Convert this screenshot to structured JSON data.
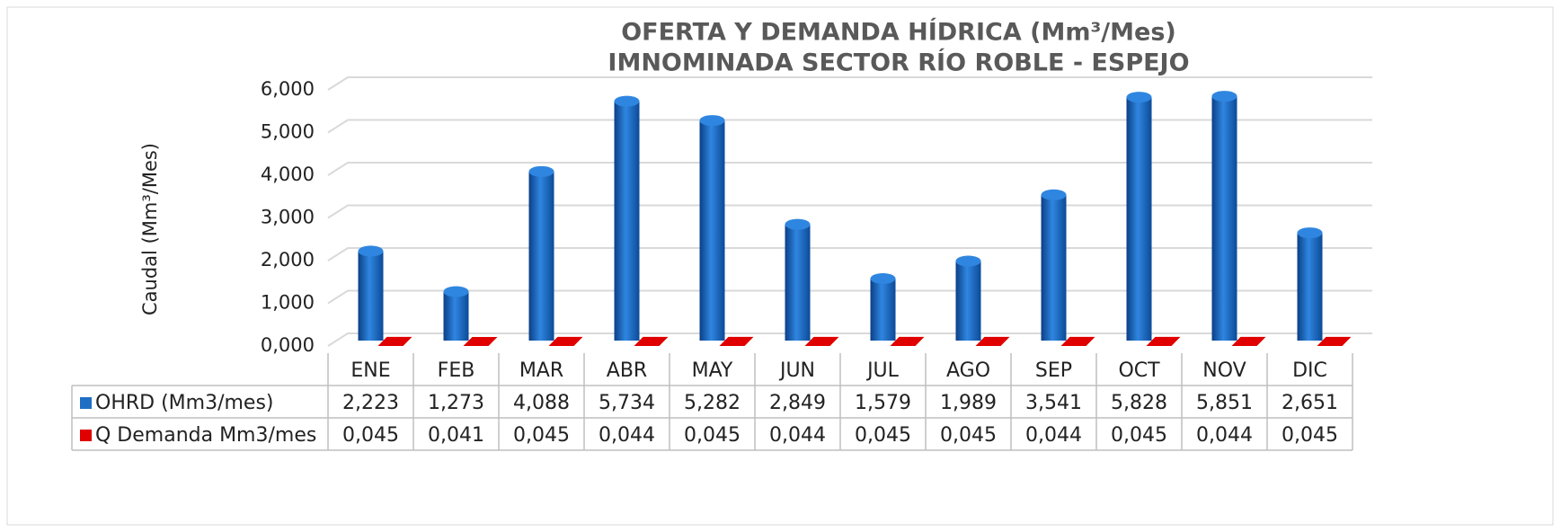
{
  "chart_data": {
    "type": "bar3d",
    "title": [
      "OFERTA Y DEMANDA HÍDRICA (Mm³/Mes)",
      "IMNOMINADA SECTOR RÍO ROBLE - ESPEJO"
    ],
    "y_label": "Caudal (Mm³/Mes)",
    "categories": [
      "ENE",
      "FEB",
      "MAR",
      "ABR",
      "MAY",
      "JUN",
      "JUL",
      "AGO",
      "SEP",
      "OCT",
      "NOV",
      "DIC"
    ],
    "series": [
      {
        "name": "OHRD (Mm3/mes)",
        "color": "#1f6fc5",
        "values": [
          2.223,
          1.273,
          4.088,
          5.734,
          5.282,
          2.849,
          1.579,
          1.989,
          3.541,
          5.828,
          5.851,
          2.651
        ],
        "value_labels": [
          "2,223",
          "1,273",
          "4,088",
          "5,734",
          "5,282",
          "2,849",
          "1,579",
          "1,989",
          "3,541",
          "5,828",
          "5,851",
          "2,651"
        ]
      },
      {
        "name": "Q Demanda Mm3/mes",
        "color": "#e00000",
        "values": [
          0.045,
          0.041,
          0.045,
          0.044,
          0.045,
          0.044,
          0.045,
          0.045,
          0.044,
          0.045,
          0.044,
          0.045
        ],
        "value_labels": [
          "0,045",
          "0,041",
          "0,045",
          "0,044",
          "0,045",
          "0,044",
          "0,045",
          "0,045",
          "0,044",
          "0,045",
          "0,044",
          "0,045"
        ]
      }
    ],
    "ylim": [
      0,
      6
    ],
    "yticks": [
      {
        "value": 0,
        "label": "0,000"
      },
      {
        "value": 1,
        "label": "1,000"
      },
      {
        "value": 2,
        "label": "2,000"
      },
      {
        "value": 3,
        "label": "3,000"
      },
      {
        "value": 4,
        "label": "4,000"
      },
      {
        "value": 5,
        "label": "5,000"
      },
      {
        "value": 6,
        "label": "6,000"
      }
    ],
    "grid": true
  }
}
